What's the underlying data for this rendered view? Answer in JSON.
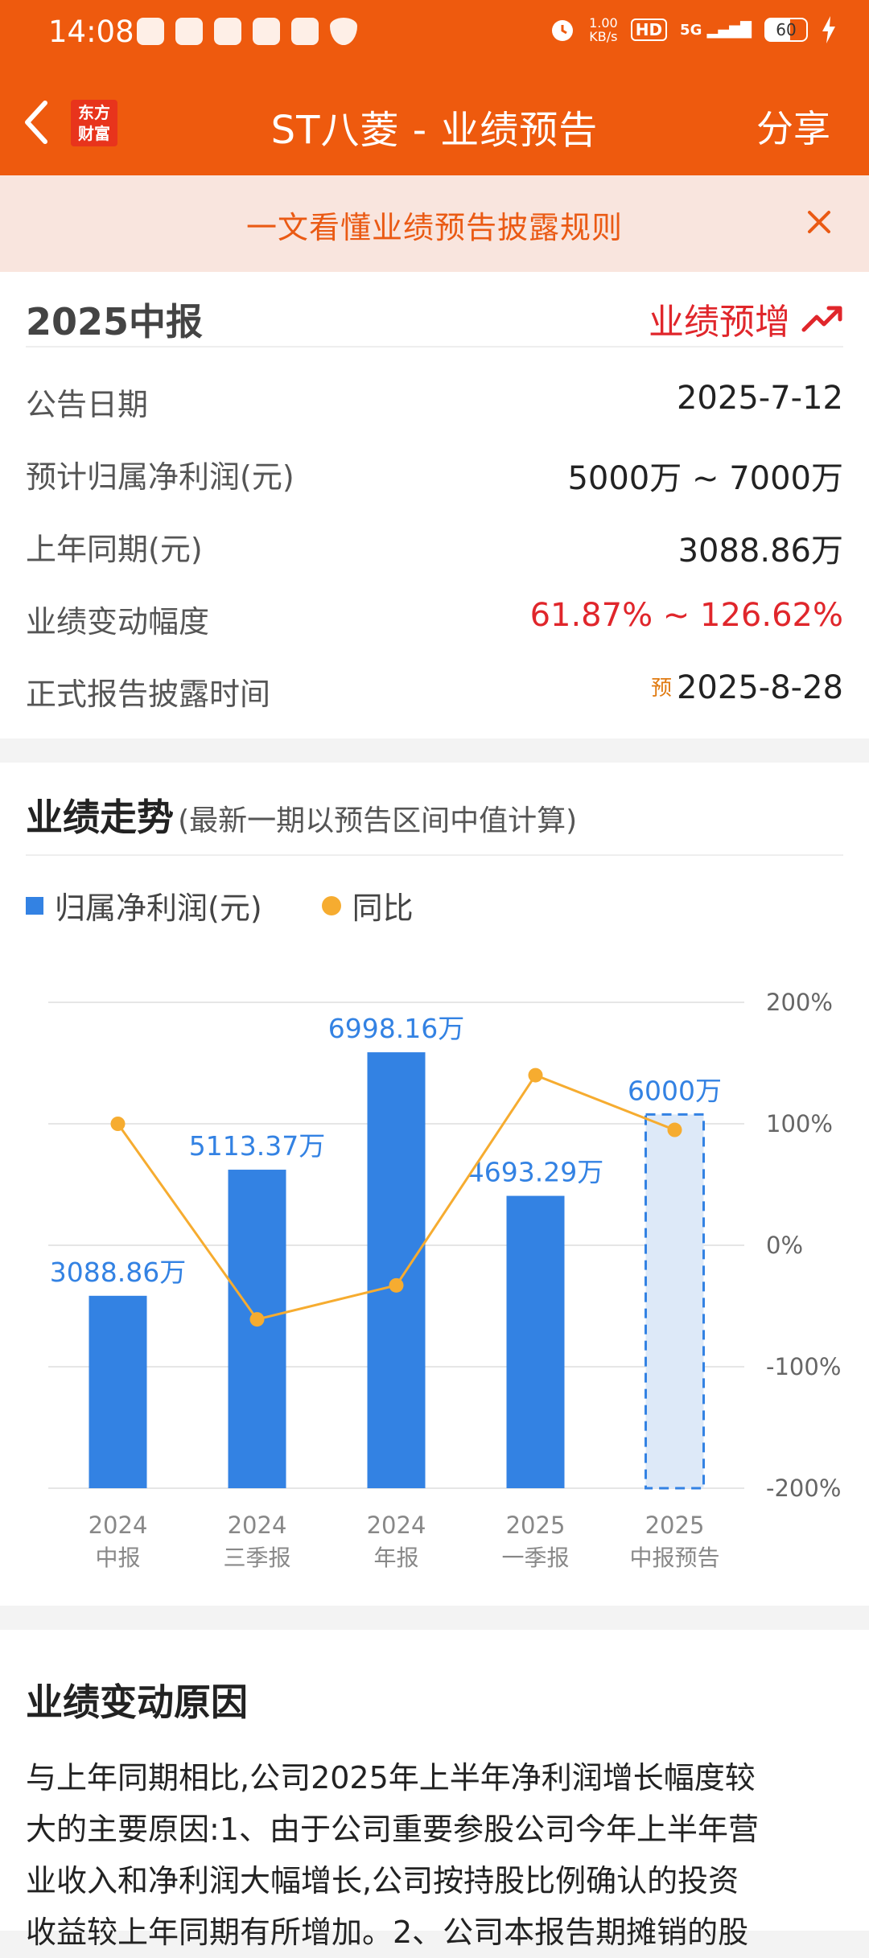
{
  "status_bar": {
    "time": "14:08",
    "speed": "1.00",
    "speed_unit": "KB/s",
    "hd": "HD",
    "signal": "5G",
    "battery": "60"
  },
  "nav": {
    "logo_line1": "东方",
    "logo_line2": "财富",
    "title": "ST八菱 - 业绩预告",
    "share_label": "分享"
  },
  "banner": {
    "text": "一文看懂业绩预告披露规则"
  },
  "forecast": {
    "period": "2025中报",
    "type": "业绩预增",
    "rows": [
      {
        "label": "公告日期",
        "value": "2025-7-12"
      },
      {
        "label": "预计归属净利润(元)",
        "value": "5000万 ~ 7000万"
      },
      {
        "label": "上年同期(元)",
        "value": "3088.86万"
      },
      {
        "label": "业绩变动幅度",
        "value": "61.87% ~ 126.62%"
      },
      {
        "label": "正式报告披露时间",
        "prefix": "预",
        "value": "2025-8-28"
      }
    ]
  },
  "trend": {
    "title": "业绩走势",
    "subtitle": "(最新一期以预告区间中值计算)"
  },
  "colors": {
    "bar": "#3382e3",
    "forecast_fill": "#dde9f8",
    "line": "#f6ac30",
    "label": "#3382e3",
    "axis": "#666666"
  },
  "chart_data": {
    "type": "bar",
    "categories": [
      "2024\n中报",
      "2024\n三季报",
      "2024\n年报",
      "2025\n一季报",
      "2025\n中报预告"
    ],
    "category_line1": [
      "2024",
      "2024",
      "2024",
      "2025",
      "2025"
    ],
    "category_line2": [
      "中报",
      "三季报",
      "年报",
      "一季报",
      "中报预告"
    ],
    "series": [
      {
        "name": "归属净利润(元)",
        "type": "bar",
        "values": [
          3088.86,
          5113.37,
          6998.16,
          4693.29,
          6000
        ],
        "labels": [
          "3088.86万",
          "5113.37万",
          "6998.16万",
          "4693.29万",
          "6000万"
        ],
        "forecast_index": 4
      },
      {
        "name": "同比",
        "type": "line",
        "axis": "right",
        "values": [
          100,
          -61,
          -33,
          140,
          95
        ]
      }
    ],
    "y_right_ticks": [
      "200%",
      "100%",
      "0%",
      "-100%",
      "-200%"
    ],
    "y_right_range": [
      -200,
      200
    ],
    "y_left_range": [
      0,
      7800
    ],
    "legend": "top-left",
    "grid": true
  },
  "reason": {
    "title": "业绩变动原因",
    "lines": [
      "与上年同期相比,公司2025年上半年净利润增长幅度较",
      "大的主要原因:1、由于公司重要参股公司今年上半年营",
      "业收入和净利润大幅增长,公司按持股比例确认的投资",
      "收益较上年同期有所增加。2、公司本报告期摊销的股"
    ]
  }
}
